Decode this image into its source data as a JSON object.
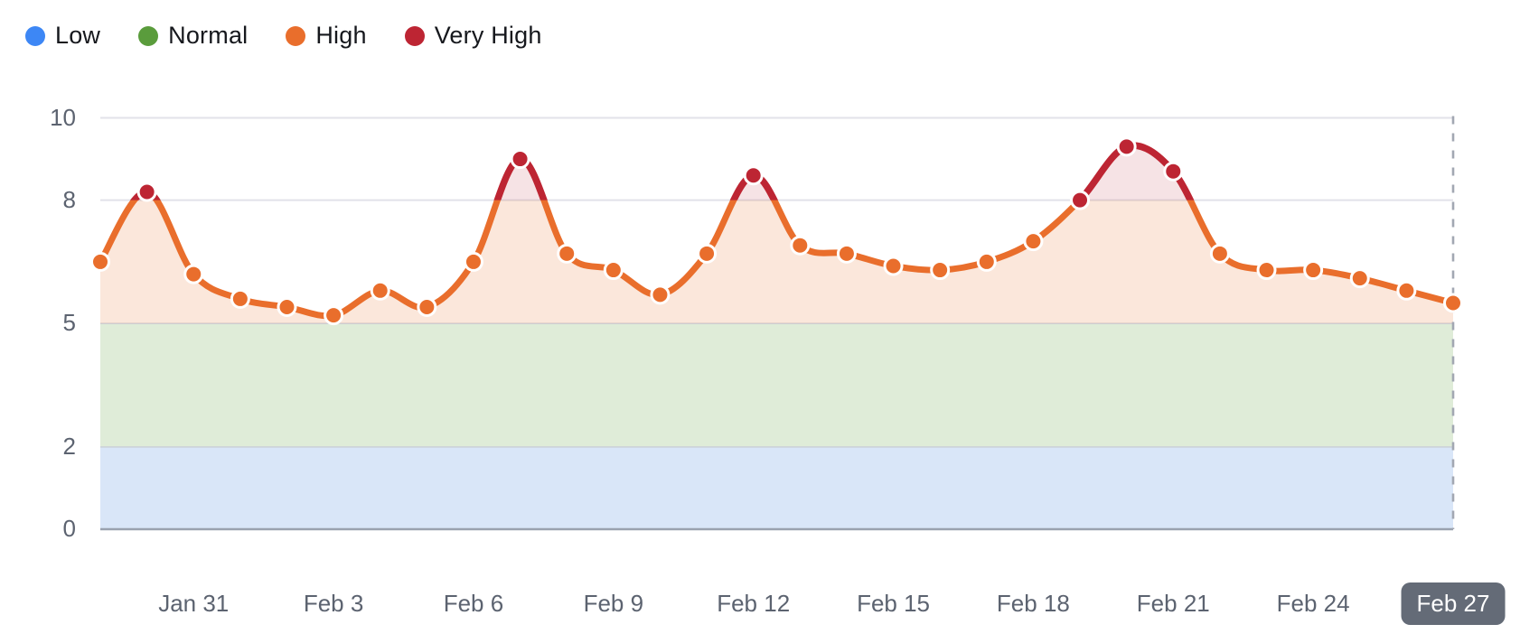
{
  "legend": {
    "items": [
      {
        "label": "Low",
        "color": "#3d87f5"
      },
      {
        "label": "Normal",
        "color": "#5a9c3c"
      },
      {
        "label": "High",
        "color": "#e96e2c"
      },
      {
        "label": "Very High",
        "color": "#bd2533"
      }
    ]
  },
  "chart_data": {
    "type": "line",
    "title": "",
    "x": [
      "Jan 29",
      "Jan 30",
      "Jan 31",
      "Feb 1",
      "Feb 2",
      "Feb 3",
      "Feb 4",
      "Feb 5",
      "Feb 6",
      "Feb 7",
      "Feb 8",
      "Feb 9",
      "Feb 10",
      "Feb 11",
      "Feb 12",
      "Feb 13",
      "Feb 14",
      "Feb 15",
      "Feb 16",
      "Feb 17",
      "Feb 18",
      "Feb 19",
      "Feb 20",
      "Feb 21",
      "Feb 22",
      "Feb 23",
      "Feb 24",
      "Feb 25",
      "Feb 26",
      "Feb 27"
    ],
    "values": [
      6.5,
      8.2,
      6.2,
      5.6,
      5.4,
      5.2,
      5.8,
      5.4,
      6.5,
      9.0,
      6.7,
      6.3,
      5.7,
      6.7,
      8.6,
      6.9,
      6.7,
      6.4,
      6.3,
      6.5,
      7.0,
      8.0,
      9.3,
      8.7,
      6.7,
      6.3,
      6.3,
      6.1,
      5.8,
      5.5
    ],
    "x_tick_labels": [
      "Jan 31",
      "Feb 3",
      "Feb 6",
      "Feb 9",
      "Feb 12",
      "Feb 15",
      "Feb 18",
      "Feb 21",
      "Feb 24",
      "Feb 27"
    ],
    "selected_x_tick": "Feb 27",
    "y_ticks": [
      0,
      2,
      5,
      8,
      10
    ],
    "ylim": [
      0,
      10
    ],
    "grid": "horizontal",
    "legend_position": "top-left",
    "bands": [
      {
        "label": "Low",
        "from": 0,
        "to": 2,
        "color": "#d9e6f8"
      },
      {
        "label": "Normal",
        "from": 2,
        "to": 5,
        "color": "#dfecd8"
      }
    ],
    "severity_thresholds": {
      "high_min": 5,
      "very_high_min": 8
    },
    "colors": {
      "high_line": "#e96e2c",
      "very_high_line": "#bd2533",
      "high_fill": "rgba(233,110,44,0.17)",
      "very_high_fill": "rgba(189,37,51,0.13)",
      "gridline": "#e2e2e9",
      "band_edge": "#ccd2d9",
      "axis_line": "#9aa2af",
      "cursor_line": "#a2a7b2",
      "point_ring": "#ffffff"
    }
  }
}
